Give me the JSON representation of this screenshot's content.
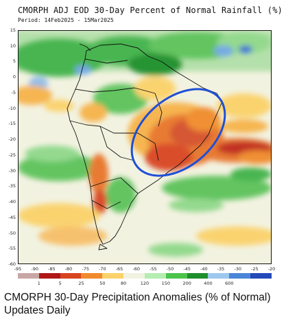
{
  "figure": {
    "title": "CMORPH ADJ EOD 30-Day Percent of Normal Rainfall (%)",
    "period": "Period: 14Feb2025 - 15Mar2025"
  },
  "map": {
    "lat_ticks": [
      "15",
      "10",
      "5",
      "0",
      "-5",
      "-10",
      "-15",
      "-20",
      "-25",
      "-30",
      "-35",
      "-40",
      "-45",
      "-50",
      "-55",
      "-60"
    ],
    "lon_ticks": [
      "-95",
      "-90",
      "-85",
      "-80",
      "-75",
      "-70",
      "-65",
      "-60",
      "-55",
      "-50",
      "-45",
      "-40",
      "-35",
      "-30",
      "-25",
      "-20"
    ],
    "highlight": "blue ellipse around eastern Brazil dry anomaly"
  },
  "colorbar": {
    "labels": [
      "1",
      "5",
      "25",
      "50",
      "80",
      "120",
      "150",
      "200",
      "400",
      "600"
    ],
    "colors": [
      "#c9a6a6",
      "#b01818",
      "#d94420",
      "#f08a2c",
      "#fbd26a",
      "#f2f2e0",
      "#b4eeb0",
      "#4cc44c",
      "#1f8f2c",
      "#9ec8ee",
      "#4a86d8",
      "#2349b8"
    ]
  },
  "caption": {
    "line1": "CMORPH 30-Day Precipitation Anomalies (% of Normal)",
    "line2": "Updates Daily"
  }
}
